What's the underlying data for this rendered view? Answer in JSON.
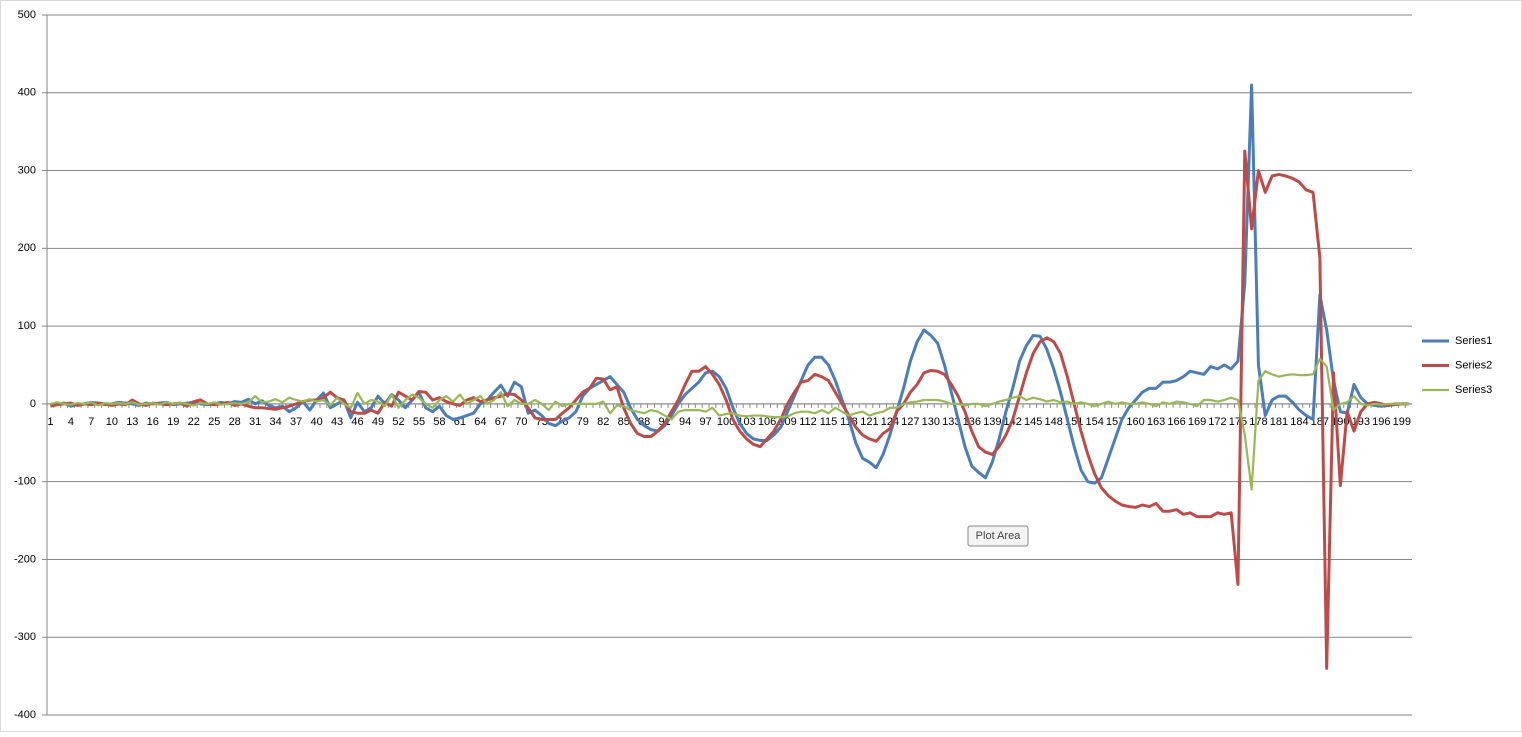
{
  "chart_data": {
    "type": "line",
    "categories": [
      "1",
      null,
      null,
      "4",
      null,
      null,
      "7",
      null,
      null,
      "10",
      null,
      null,
      "13",
      null,
      null,
      "16",
      null,
      null,
      "19",
      null,
      null,
      "22",
      null,
      null,
      "25",
      null,
      null,
      "28",
      null,
      null,
      "31",
      null,
      null,
      "34",
      null,
      null,
      "37",
      null,
      null,
      "40",
      null,
      null,
      "43",
      null,
      null,
      "46",
      null,
      null,
      "49",
      null,
      null,
      "52",
      null,
      null,
      "55",
      null,
      null,
      "58",
      null,
      null,
      "61",
      null,
      null,
      "64",
      null,
      null,
      "67",
      null,
      null,
      "70",
      null,
      null,
      "73",
      null,
      null,
      "76",
      null,
      null,
      "79",
      null,
      null,
      "82",
      null,
      null,
      "85",
      null,
      null,
      "88",
      null,
      null,
      "91",
      null,
      null,
      "94",
      null,
      null,
      "97",
      null,
      null,
      "100",
      null,
      null,
      "103",
      null,
      null,
      "106",
      null,
      null,
      "109",
      null,
      null,
      "112",
      null,
      null,
      "115",
      null,
      null,
      "118",
      null,
      null,
      "121",
      null,
      null,
      "124",
      null,
      null,
      "127",
      null,
      null,
      "130",
      null,
      null,
      "133",
      null,
      null,
      "136",
      null,
      null,
      "139",
      null,
      null,
      "142",
      null,
      null,
      "145",
      null,
      null,
      "148",
      null,
      null,
      "151",
      null,
      null,
      "154",
      null,
      null,
      "157",
      null,
      null,
      "160",
      null,
      null,
      "163",
      null,
      null,
      "166",
      null,
      null,
      "169",
      null,
      null,
      "172",
      null,
      null,
      "175",
      null,
      null,
      "178",
      null,
      null,
      "181",
      null,
      null,
      "184",
      null,
      null,
      "187",
      null,
      null,
      "190",
      null,
      null,
      "193",
      null,
      null,
      "196",
      null,
      null,
      "199",
      null
    ],
    "series": [
      {
        "name": "Series1",
        "color": "#4a7ebb",
        "width": 3,
        "values": [
          -2,
          0,
          1,
          -3,
          -1,
          0,
          2,
          1,
          -1,
          0,
          2,
          1,
          0,
          -2,
          1,
          0,
          1,
          2,
          -1,
          0,
          1,
          2,
          0,
          -1,
          0,
          2,
          0,
          3,
          2,
          6,
          0,
          4,
          -2,
          -5,
          -3,
          -10,
          -5,
          3,
          -8,
          5,
          14,
          -5,
          0,
          5,
          -18,
          2,
          -10,
          -5,
          10,
          0,
          12,
          5,
          -5,
          5,
          15,
          -5,
          -10,
          -3,
          -15,
          -20,
          -18,
          -15,
          -12,
          0,
          5,
          15,
          24,
          10,
          28,
          22,
          -12,
          -8,
          -15,
          -25,
          -28,
          -22,
          -18,
          -10,
          10,
          20,
          25,
          30,
          35,
          25,
          15,
          -5,
          -20,
          -28,
          -33,
          -35,
          -28,
          -15,
          0,
          12,
          20,
          28,
          40,
          42,
          35,
          20,
          -5,
          -25,
          -38,
          -45,
          -47,
          -47,
          -40,
          -30,
          -10,
          10,
          30,
          50,
          60,
          60,
          50,
          30,
          5,
          -20,
          -50,
          -70,
          -75,
          -82,
          -65,
          -40,
          -10,
          20,
          55,
          80,
          95,
          88,
          78,
          50,
          15,
          -20,
          -55,
          -80,
          -88,
          -95,
          -75,
          -45,
          -10,
          20,
          55,
          75,
          88,
          87,
          70,
          45,
          15,
          -20,
          -55,
          -85,
          -100,
          -102,
          -95,
          -70,
          -45,
          -20,
          -5,
          5,
          15,
          20,
          20,
          28,
          28,
          30,
          35,
          42,
          40,
          38,
          48,
          45,
          50,
          45,
          55,
          155,
          410,
          50,
          -15,
          5,
          10,
          10,
          2,
          -8,
          -15,
          -20,
          140,
          95,
          30,
          -10,
          -12,
          25,
          8,
          0,
          -2,
          -3,
          -2,
          -1,
          0,
          0
        ]
      },
      {
        "name": "Series2",
        "color": "#be4b48",
        "width": 3,
        "values": [
          -3,
          -1,
          0,
          1,
          -2,
          0,
          -1,
          1,
          0,
          -2,
          0,
          -1,
          5,
          0,
          -2,
          1,
          0,
          -1,
          0,
          1,
          -3,
          3,
          5,
          0,
          -1,
          0,
          2,
          -2,
          0,
          -3,
          -5,
          -5,
          -6,
          -7,
          -5,
          -3,
          0,
          3,
          5,
          5,
          8,
          15,
          8,
          5,
          -10,
          -12,
          -12,
          -8,
          -12,
          2,
          -3,
          15,
          10,
          5,
          16,
          15,
          5,
          8,
          3,
          0,
          -2,
          5,
          8,
          3,
          5,
          8,
          10,
          13,
          12,
          5,
          -5,
          -18,
          -20,
          -20,
          -20,
          -12,
          -5,
          5,
          15,
          20,
          33,
          32,
          18,
          22,
          -5,
          -25,
          -38,
          -42,
          -42,
          -35,
          -25,
          -10,
          5,
          25,
          42,
          42,
          48,
          38,
          25,
          5,
          -20,
          -35,
          -45,
          -52,
          -55,
          -45,
          -35,
          -20,
          0,
          15,
          28,
          30,
          38,
          35,
          30,
          15,
          0,
          -15,
          -30,
          -40,
          -45,
          -48,
          -38,
          -32,
          -10,
          0,
          15,
          25,
          40,
          43,
          42,
          38,
          25,
          10,
          -10,
          -35,
          -55,
          -62,
          -65,
          -55,
          -40,
          -20,
          10,
          40,
          65,
          80,
          85,
          80,
          65,
          35,
          0,
          -35,
          -65,
          -90,
          -108,
          -118,
          -125,
          -130,
          -132,
          -133,
          -130,
          -132,
          -128,
          -138,
          -138,
          -136,
          -142,
          -140,
          -145,
          -145,
          -145,
          -140,
          -142,
          -140,
          -232,
          325,
          225,
          300,
          272,
          293,
          295,
          293,
          290,
          285,
          275,
          272,
          188,
          -340,
          40,
          -105,
          -10,
          -35,
          -10,
          0,
          2,
          0,
          -2,
          0,
          0,
          0
        ]
      },
      {
        "name": "Series3",
        "color": "#98b954",
        "width": 2.2,
        "values": [
          0,
          2,
          0,
          -1,
          1,
          0,
          2,
          -2,
          1,
          0,
          1,
          0,
          2,
          -1,
          0,
          1,
          -1,
          2,
          0,
          1,
          0,
          -2,
          1,
          0,
          2,
          -1,
          0,
          1,
          0,
          2,
          10,
          2,
          3,
          6,
          2,
          8,
          5,
          3,
          6,
          3,
          5,
          -2,
          8,
          0,
          -5,
          14,
          0,
          5,
          3,
          -3,
          12,
          -5,
          5,
          12,
          8,
          0,
          -5,
          5,
          10,
          3,
          12,
          0,
          5,
          10,
          0,
          5,
          15,
          -3,
          5,
          0,
          0,
          5,
          0,
          -8,
          3,
          -3,
          0,
          0,
          0,
          0,
          0,
          3,
          -12,
          -2,
          -3,
          -8,
          -10,
          -12,
          -8,
          -10,
          -15,
          -20,
          -10,
          -8,
          -8,
          -8,
          -10,
          -5,
          -15,
          -13,
          -12,
          -15,
          -16,
          -15,
          -15,
          -16,
          -17,
          -17,
          -16,
          -12,
          -10,
          -10,
          -12,
          -8,
          -12,
          -5,
          -10,
          -15,
          -12,
          -10,
          -15,
          -12,
          -10,
          -5,
          -5,
          0,
          2,
          3,
          5,
          5,
          5,
          3,
          0,
          0,
          -2,
          0,
          0,
          -3,
          0,
          3,
          5,
          8,
          10,
          5,
          8,
          6,
          3,
          5,
          2,
          3,
          0,
          2,
          0,
          -3,
          0,
          3,
          0,
          2,
          0,
          0,
          2,
          0,
          -3,
          2,
          0,
          3,
          2,
          0,
          -3,
          5,
          5,
          3,
          5,
          8,
          5,
          -40,
          -110,
          30,
          42,
          38,
          35,
          37,
          38,
          37,
          37,
          38,
          58,
          48,
          -8,
          0,
          2,
          10,
          0,
          -2,
          0,
          -1,
          0,
          0,
          0,
          0
        ]
      }
    ],
    "ylim": [
      -400,
      500
    ],
    "yticks": [
      -400,
      -300,
      -200,
      -100,
      0,
      100,
      200,
      300,
      400,
      500
    ],
    "grid": true,
    "legend": "right",
    "tooltip": "Plot Area"
  }
}
